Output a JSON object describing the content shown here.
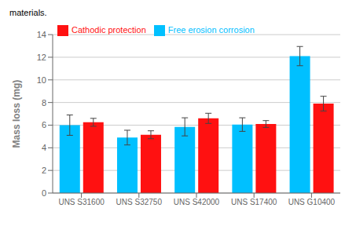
{
  "chart_data": {
    "type": "bar",
    "annotations": [
      "materials."
    ],
    "ylabel": "Mass loss (mg)",
    "categories": [
      "UNS S31600",
      "UNS S32750",
      "UNS S42000",
      "UNS S17400",
      "UNS G10400"
    ],
    "series": [
      {
        "name": "Free erosion corrosion",
        "color": "#00C0FF",
        "values": [
          6.0,
          4.9,
          5.85,
          6.05,
          12.1
        ],
        "errors": [
          0.9,
          0.65,
          0.8,
          0.6,
          0.85
        ]
      },
      {
        "name": "Cathodic protection",
        "color": "#FF1111",
        "values": [
          6.25,
          5.15,
          6.6,
          6.1,
          7.9
        ],
        "errors": [
          0.35,
          0.35,
          0.45,
          0.3,
          0.65
        ]
      }
    ],
    "ylim": [
      0,
      14
    ],
    "yticks": [
      0,
      2,
      4,
      6,
      8,
      10,
      12,
      14
    ],
    "grid": true,
    "legend": "upper left"
  }
}
